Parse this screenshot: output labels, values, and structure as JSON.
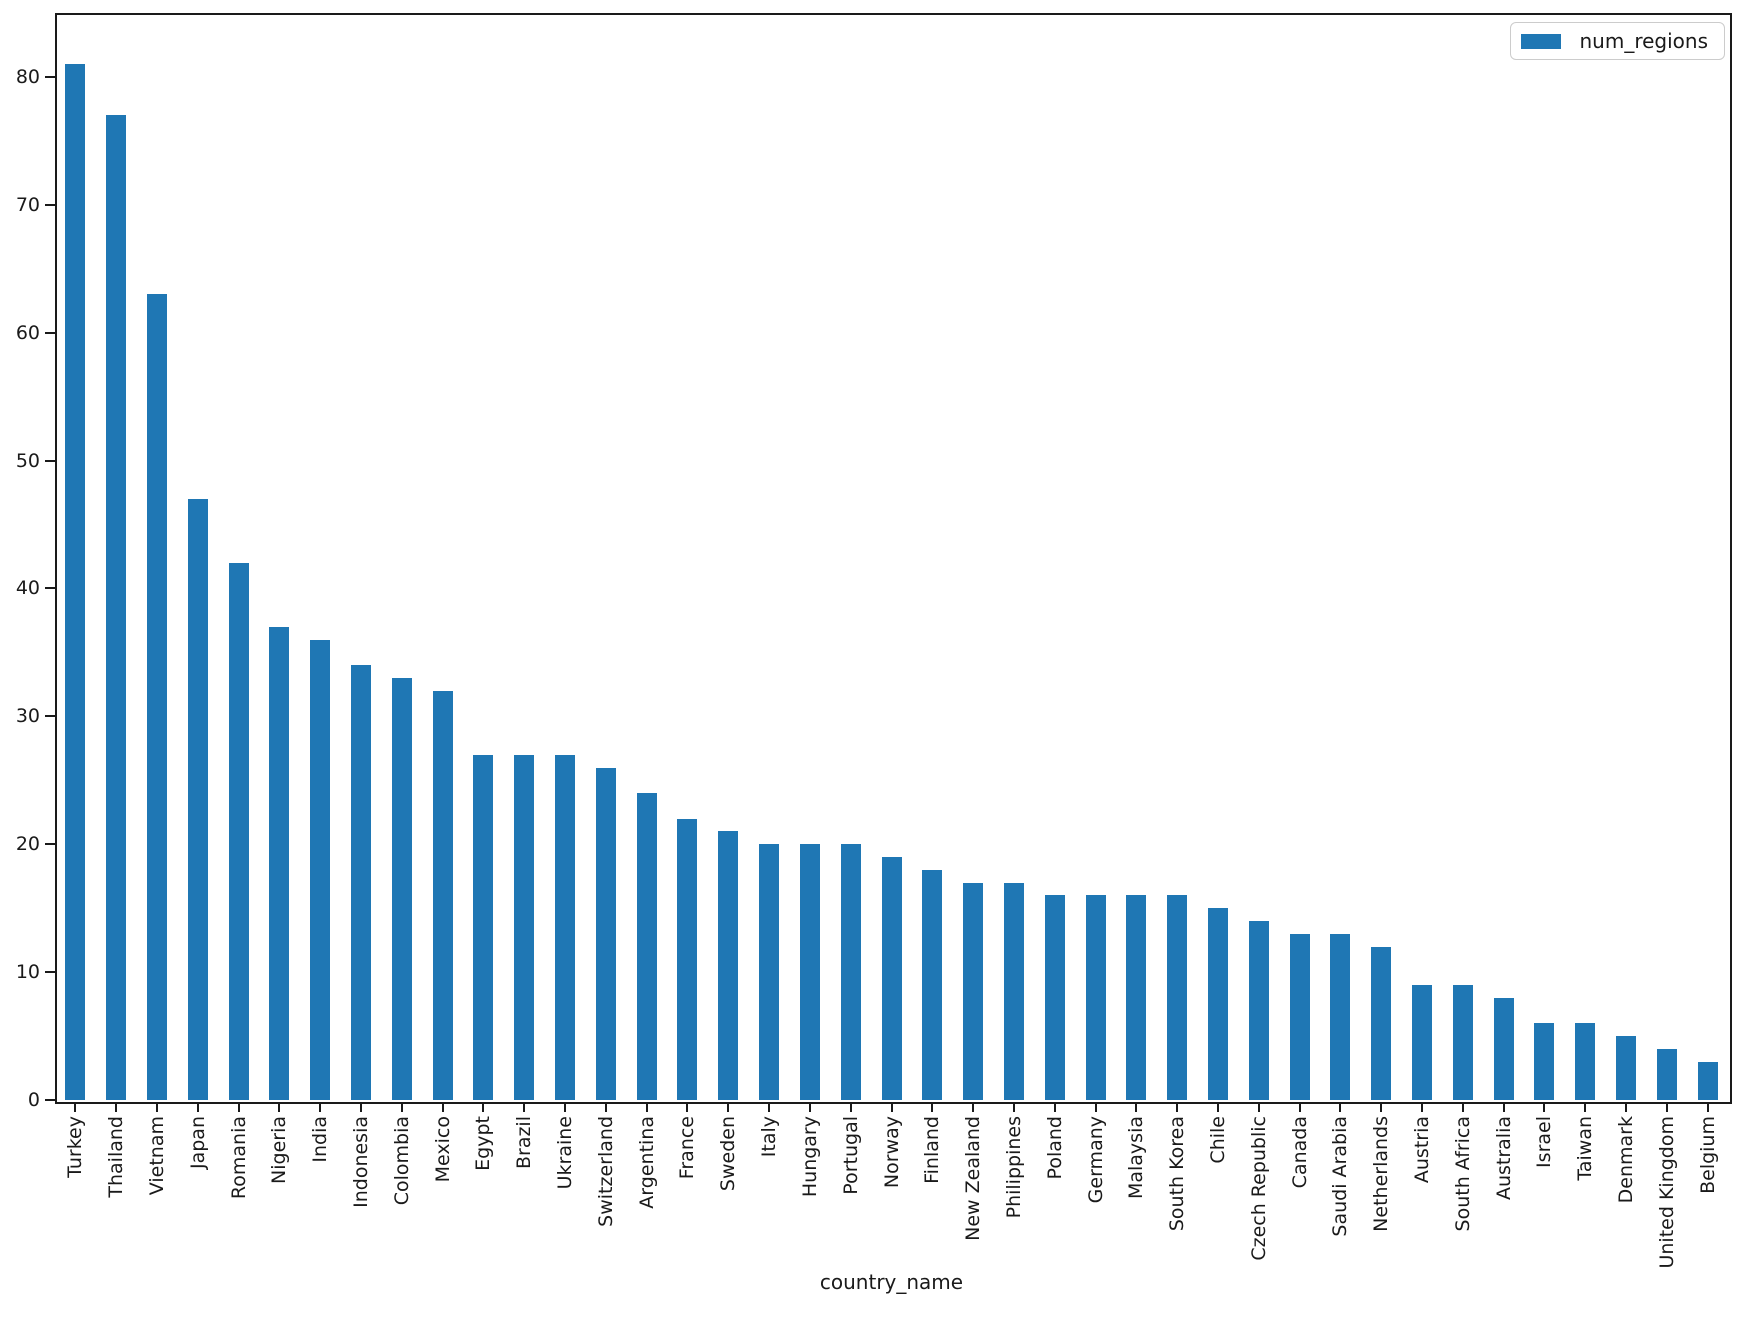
{
  "figure": {
    "xlabel": "country_name"
  },
  "chart_data": {
    "type": "bar",
    "title": "",
    "xlabel": "country_name",
    "ylabel": "",
    "legend": [
      "num_regions"
    ],
    "legend_position": "upper right",
    "bar_color": "#1f77b4",
    "grid": false,
    "ylim": [
      0,
      85
    ],
    "yticks": [
      0,
      10,
      20,
      30,
      40,
      50,
      60,
      70,
      80
    ],
    "x_tick_rotation": 90,
    "categories": [
      "Turkey",
      "Thailand",
      "Vietnam",
      "Japan",
      "Romania",
      "Nigeria",
      "India",
      "Indonesia",
      "Colombia",
      "Mexico",
      "Egypt",
      "Brazil",
      "Ukraine",
      "Switzerland",
      "Argentina",
      "France",
      "Sweden",
      "Italy",
      "Hungary",
      "Portugal",
      "Norway",
      "Finland",
      "New Zealand",
      "Philippines",
      "Poland",
      "Germany",
      "Malaysia",
      "South Korea",
      "Chile",
      "Czech Republic",
      "Canada",
      "Saudi Arabia",
      "Netherlands",
      "Austria",
      "South Africa",
      "Australia",
      "Israel",
      "Taiwan",
      "Denmark",
      "United Kingdom",
      "Belgium"
    ],
    "values": [
      81,
      77,
      63,
      47,
      42,
      37,
      36,
      34,
      33,
      32,
      27,
      27,
      27,
      26,
      24,
      22,
      21,
      20,
      20,
      20,
      19,
      18,
      17,
      17,
      16,
      16,
      16,
      16,
      15,
      14,
      13,
      13,
      12,
      9,
      9,
      8,
      6,
      6,
      5,
      4,
      3
    ]
  }
}
